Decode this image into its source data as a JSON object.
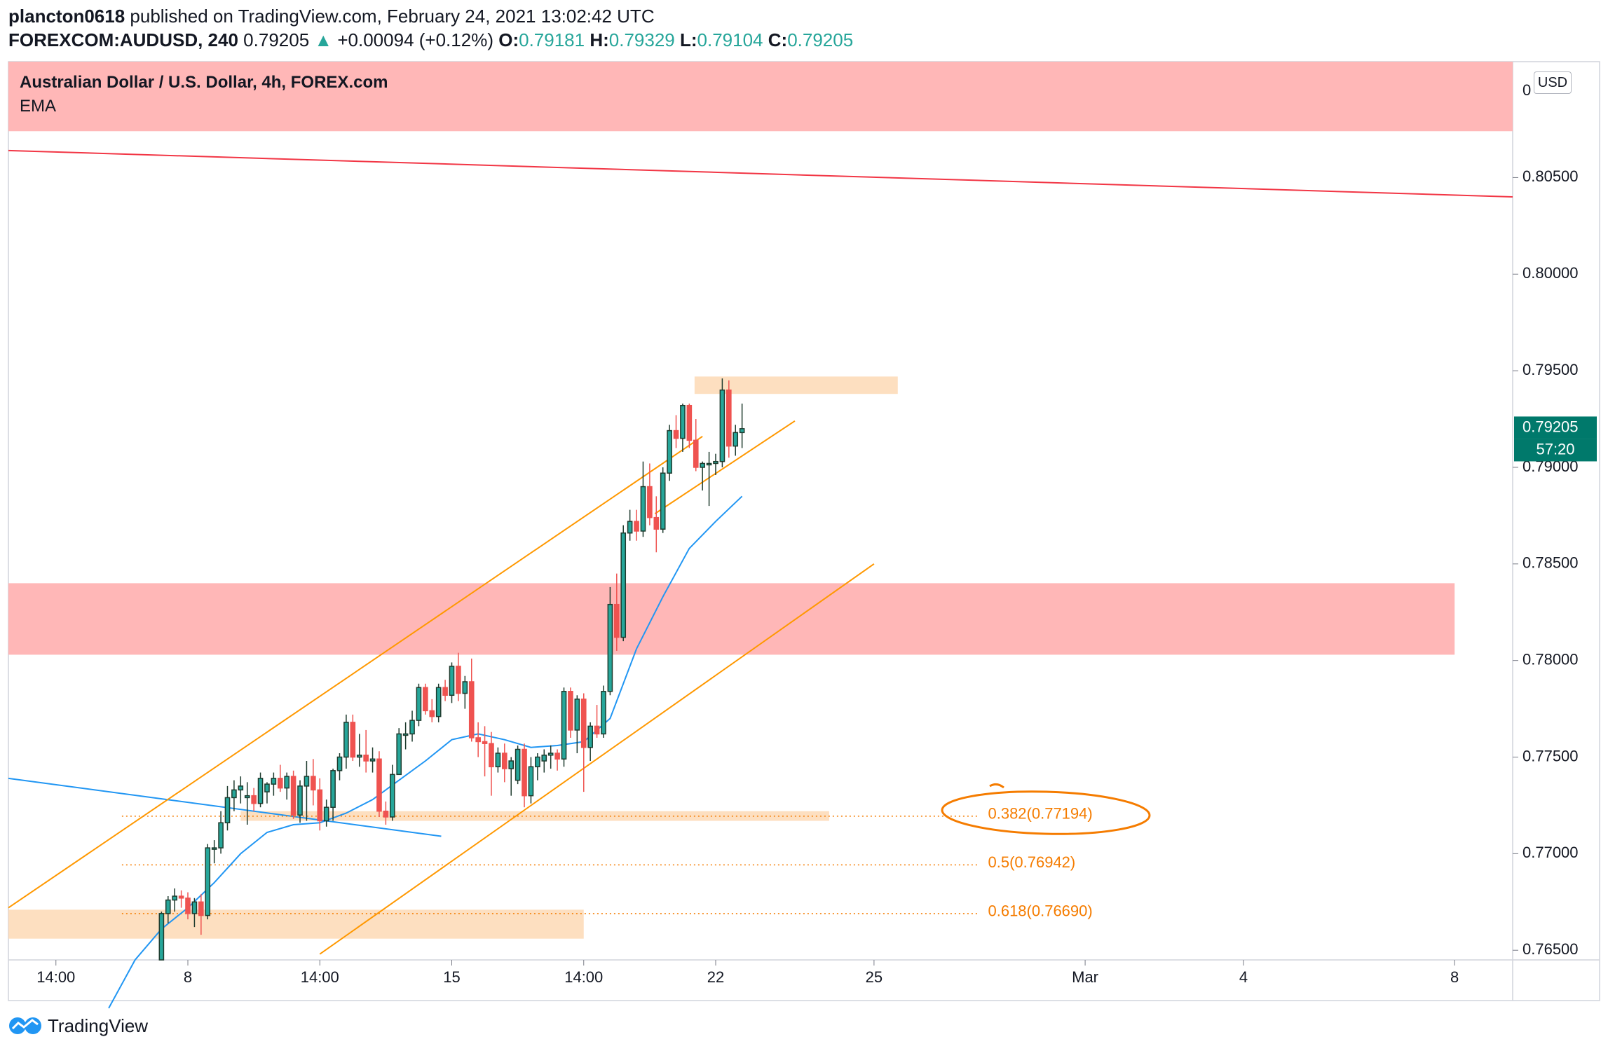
{
  "header": {
    "user": "plancton0618",
    "published": " published on TradingView.com, February 24, 2021 13:02:42 UTC",
    "symbol": "FOREXCOM:AUDUSD, 240",
    "last": "0.79205",
    "change": "+0.00094 (+0.12%)",
    "o_label": "O:",
    "o": "0.79181",
    "h_label": "H:",
    "h": "0.79329",
    "l_label": "L:",
    "l": "0.79104",
    "c_label": "C:",
    "c": "0.79205"
  },
  "legend": {
    "title": "Australian Dollar / U.S. Dollar, 4h, FOREX.com",
    "indicator": "EMA"
  },
  "currency_button": "USD",
  "footer": {
    "brand": "TradingView"
  },
  "colors": {
    "up": "#26a69a",
    "down": "#ef5350",
    "candle_dark": "#1e3b2e",
    "ema": "#2196f3",
    "channel": "#ff9800",
    "resistance_line": "#f23645",
    "zone_red": "#ffb3b3",
    "zone_orange": "#fdd9b5",
    "fib_text": "#f57c00",
    "price_tag": "#00796b"
  },
  "chart_data": {
    "type": "candlestick",
    "ylim": [
      0.7645,
      0.811
    ],
    "yticks": [
      "0.80500",
      "0.80000",
      "0.79500",
      "0.79000",
      "0.78500",
      "0.78000",
      "0.77500",
      "0.77000",
      "0.76500"
    ],
    "ytick_values": [
      0.805,
      0.8,
      0.795,
      0.79,
      0.785,
      0.78,
      0.775,
      0.77,
      0.765
    ],
    "top_tick_partial": "0",
    "x_tick_labels": [
      {
        "label": "14:00",
        "x": 0
      },
      {
        "label": "8",
        "x": 5
      },
      {
        "label": "14:00",
        "x": 10
      },
      {
        "label": "15",
        "x": 15
      },
      {
        "label": "14:00",
        "x": 20
      },
      {
        "label": "22",
        "x": 25
      },
      {
        "label": "25",
        "x": 31
      },
      {
        "label": "Mar",
        "x": 39
      },
      {
        "label": "4",
        "x": 45
      },
      {
        "label": "8",
        "x": 53
      }
    ],
    "x_range": [
      -1.8,
      55.2
    ],
    "candles": [
      {
        "x": 4.0,
        "o": 0.764,
        "h": 0.767,
        "l": 0.7635,
        "c": 0.7669
      },
      {
        "x": 4.25,
        "o": 0.7669,
        "h": 0.7678,
        "l": 0.7664,
        "c": 0.7676
      },
      {
        "x": 4.5,
        "o": 0.7676,
        "h": 0.7682,
        "l": 0.767,
        "c": 0.7678
      },
      {
        "x": 4.75,
        "o": 0.7678,
        "h": 0.7681,
        "l": 0.7672,
        "c": 0.7677
      },
      {
        "x": 5.0,
        "o": 0.7677,
        "h": 0.768,
        "l": 0.7666,
        "c": 0.7669
      },
      {
        "x": 5.25,
        "o": 0.7669,
        "h": 0.7677,
        "l": 0.7662,
        "c": 0.7675
      },
      {
        "x": 5.5,
        "o": 0.7675,
        "h": 0.7679,
        "l": 0.7658,
        "c": 0.7668
      },
      {
        "x": 5.75,
        "o": 0.7668,
        "h": 0.7705,
        "l": 0.7666,
        "c": 0.7703
      },
      {
        "x": 6.0,
        "o": 0.7703,
        "h": 0.7707,
        "l": 0.7695,
        "c": 0.7703
      },
      {
        "x": 6.25,
        "o": 0.7703,
        "h": 0.7722,
        "l": 0.77,
        "c": 0.7716
      },
      {
        "x": 6.5,
        "o": 0.7716,
        "h": 0.7735,
        "l": 0.7712,
        "c": 0.7729
      },
      {
        "x": 6.75,
        "o": 0.7729,
        "h": 0.7738,
        "l": 0.7722,
        "c": 0.7733
      },
      {
        "x": 7.0,
        "o": 0.7733,
        "h": 0.774,
        "l": 0.7726,
        "c": 0.7735
      },
      {
        "x": 7.25,
        "o": 0.7729,
        "h": 0.7737,
        "l": 0.7715,
        "c": 0.773
      },
      {
        "x": 7.5,
        "o": 0.773,
        "h": 0.7734,
        "l": 0.7722,
        "c": 0.7726
      },
      {
        "x": 7.75,
        "o": 0.7726,
        "h": 0.7742,
        "l": 0.7724,
        "c": 0.7739
      },
      {
        "x": 8.0,
        "o": 0.7732,
        "h": 0.7737,
        "l": 0.7726,
        "c": 0.7736
      },
      {
        "x": 8.25,
        "o": 0.7736,
        "h": 0.7742,
        "l": 0.773,
        "c": 0.7739
      },
      {
        "x": 8.5,
        "o": 0.7739,
        "h": 0.7746,
        "l": 0.7732,
        "c": 0.7734
      },
      {
        "x": 8.75,
        "o": 0.7734,
        "h": 0.7742,
        "l": 0.7728,
        "c": 0.774
      },
      {
        "x": 9.0,
        "o": 0.774,
        "h": 0.7743,
        "l": 0.7718,
        "c": 0.772
      },
      {
        "x": 9.25,
        "o": 0.772,
        "h": 0.7738,
        "l": 0.7716,
        "c": 0.7735
      },
      {
        "x": 9.5,
        "o": 0.7735,
        "h": 0.7748,
        "l": 0.7717,
        "c": 0.774
      },
      {
        "x": 9.75,
        "o": 0.774,
        "h": 0.7749,
        "l": 0.7725,
        "c": 0.7733
      },
      {
        "x": 10.0,
        "o": 0.7733,
        "h": 0.7739,
        "l": 0.7712,
        "c": 0.7717
      },
      {
        "x": 10.25,
        "o": 0.7717,
        "h": 0.7728,
        "l": 0.7714,
        "c": 0.7724
      },
      {
        "x": 10.5,
        "o": 0.7724,
        "h": 0.7744,
        "l": 0.7717,
        "c": 0.7743
      },
      {
        "x": 10.75,
        "o": 0.7743,
        "h": 0.7752,
        "l": 0.7738,
        "c": 0.775
      },
      {
        "x": 11.0,
        "o": 0.775,
        "h": 0.7772,
        "l": 0.7744,
        "c": 0.7768
      },
      {
        "x": 11.25,
        "o": 0.7768,
        "h": 0.7772,
        "l": 0.7748,
        "c": 0.775
      },
      {
        "x": 11.5,
        "o": 0.775,
        "h": 0.7762,
        "l": 0.7745,
        "c": 0.7751
      },
      {
        "x": 11.75,
        "o": 0.7751,
        "h": 0.7764,
        "l": 0.7742,
        "c": 0.7748
      },
      {
        "x": 12.0,
        "o": 0.7748,
        "h": 0.7755,
        "l": 0.7742,
        "c": 0.7749
      },
      {
        "x": 12.25,
        "o": 0.7749,
        "h": 0.7753,
        "l": 0.7719,
        "c": 0.7722
      },
      {
        "x": 12.5,
        "o": 0.7722,
        "h": 0.7727,
        "l": 0.7715,
        "c": 0.7719
      },
      {
        "x": 12.75,
        "o": 0.7719,
        "h": 0.7746,
        "l": 0.7717,
        "c": 0.7741
      },
      {
        "x": 13.0,
        "o": 0.7741,
        "h": 0.7765,
        "l": 0.7741,
        "c": 0.7762
      },
      {
        "x": 13.25,
        "o": 0.7762,
        "h": 0.7768,
        "l": 0.7754,
        "c": 0.7762
      },
      {
        "x": 13.5,
        "o": 0.7762,
        "h": 0.7774,
        "l": 0.7758,
        "c": 0.7769
      },
      {
        "x": 13.75,
        "o": 0.7769,
        "h": 0.7788,
        "l": 0.7766,
        "c": 0.7786
      },
      {
        "x": 14.0,
        "o": 0.7786,
        "h": 0.7788,
        "l": 0.7772,
        "c": 0.7774
      },
      {
        "x": 14.25,
        "o": 0.7774,
        "h": 0.778,
        "l": 0.7768,
        "c": 0.7771
      },
      {
        "x": 14.5,
        "o": 0.7771,
        "h": 0.7788,
        "l": 0.7768,
        "c": 0.7786
      },
      {
        "x": 14.75,
        "o": 0.7786,
        "h": 0.779,
        "l": 0.7779,
        "c": 0.7782
      },
      {
        "x": 15.0,
        "o": 0.7782,
        "h": 0.7799,
        "l": 0.7778,
        "c": 0.7797
      },
      {
        "x": 15.25,
        "o": 0.7797,
        "h": 0.7804,
        "l": 0.7779,
        "c": 0.7783
      },
      {
        "x": 15.5,
        "o": 0.7783,
        "h": 0.7792,
        "l": 0.7775,
        "c": 0.7789
      },
      {
        "x": 15.75,
        "o": 0.7789,
        "h": 0.7801,
        "l": 0.7758,
        "c": 0.776
      },
      {
        "x": 16.0,
        "o": 0.776,
        "h": 0.7768,
        "l": 0.775,
        "c": 0.7758
      },
      {
        "x": 16.25,
        "o": 0.7758,
        "h": 0.7766,
        "l": 0.774,
        "c": 0.7757
      },
      {
        "x": 16.5,
        "o": 0.7757,
        "h": 0.7763,
        "l": 0.773,
        "c": 0.7745
      },
      {
        "x": 16.75,
        "o": 0.7745,
        "h": 0.7755,
        "l": 0.7742,
        "c": 0.7752
      },
      {
        "x": 17.0,
        "o": 0.7752,
        "h": 0.7757,
        "l": 0.7737,
        "c": 0.7744
      },
      {
        "x": 17.25,
        "o": 0.7744,
        "h": 0.775,
        "l": 0.773,
        "c": 0.7748
      },
      {
        "x": 17.5,
        "o": 0.7738,
        "h": 0.7756,
        "l": 0.7736,
        "c": 0.7754
      },
      {
        "x": 17.75,
        "o": 0.7754,
        "h": 0.7757,
        "l": 0.7724,
        "c": 0.773
      },
      {
        "x": 18.0,
        "o": 0.773,
        "h": 0.775,
        "l": 0.7726,
        "c": 0.7745
      },
      {
        "x": 18.25,
        "o": 0.7745,
        "h": 0.7752,
        "l": 0.7738,
        "c": 0.775
      },
      {
        "x": 18.5,
        "o": 0.7748,
        "h": 0.7754,
        "l": 0.7742,
        "c": 0.7751
      },
      {
        "x": 18.75,
        "o": 0.7751,
        "h": 0.7756,
        "l": 0.7744,
        "c": 0.7752
      },
      {
        "x": 19.0,
        "o": 0.7752,
        "h": 0.7754,
        "l": 0.7743,
        "c": 0.7749
      },
      {
        "x": 19.25,
        "o": 0.7749,
        "h": 0.7786,
        "l": 0.7745,
        "c": 0.7784
      },
      {
        "x": 19.5,
        "o": 0.7784,
        "h": 0.7786,
        "l": 0.776,
        "c": 0.7764
      },
      {
        "x": 19.75,
        "o": 0.7764,
        "h": 0.7782,
        "l": 0.7752,
        "c": 0.778
      },
      {
        "x": 20.0,
        "o": 0.778,
        "h": 0.7783,
        "l": 0.7732,
        "c": 0.7755
      },
      {
        "x": 20.25,
        "o": 0.7755,
        "h": 0.7768,
        "l": 0.7748,
        "c": 0.7766
      },
      {
        "x": 20.5,
        "o": 0.7766,
        "h": 0.7777,
        "l": 0.776,
        "c": 0.7762
      },
      {
        "x": 20.75,
        "o": 0.7762,
        "h": 0.7787,
        "l": 0.776,
        "c": 0.7784
      },
      {
        "x": 21.0,
        "o": 0.7784,
        "h": 0.7838,
        "l": 0.7782,
        "c": 0.7829
      },
      {
        "x": 21.25,
        "o": 0.7829,
        "h": 0.7845,
        "l": 0.7805,
        "c": 0.7812
      },
      {
        "x": 21.5,
        "o": 0.7812,
        "h": 0.787,
        "l": 0.781,
        "c": 0.7866
      },
      {
        "x": 21.75,
        "o": 0.7866,
        "h": 0.7878,
        "l": 0.7862,
        "c": 0.7872
      },
      {
        "x": 22.0,
        "o": 0.7872,
        "h": 0.7878,
        "l": 0.7862,
        "c": 0.7867
      },
      {
        "x": 22.25,
        "o": 0.7867,
        "h": 0.7903,
        "l": 0.7864,
        "c": 0.789
      },
      {
        "x": 22.5,
        "o": 0.789,
        "h": 0.7902,
        "l": 0.787,
        "c": 0.7874
      },
      {
        "x": 22.75,
        "o": 0.7874,
        "h": 0.7885,
        "l": 0.7856,
        "c": 0.7868
      },
      {
        "x": 23.0,
        "o": 0.7868,
        "h": 0.79,
        "l": 0.7866,
        "c": 0.7897
      },
      {
        "x": 23.25,
        "o": 0.7897,
        "h": 0.7922,
        "l": 0.7893,
        "c": 0.7919
      },
      {
        "x": 23.5,
        "o": 0.7919,
        "h": 0.7927,
        "l": 0.791,
        "c": 0.7915
      },
      {
        "x": 23.75,
        "o": 0.7915,
        "h": 0.7933,
        "l": 0.7908,
        "c": 0.7932
      },
      {
        "x": 24.0,
        "o": 0.7932,
        "h": 0.7933,
        "l": 0.791,
        "c": 0.7914
      },
      {
        "x": 24.25,
        "o": 0.7914,
        "h": 0.7925,
        "l": 0.7898,
        "c": 0.79
      },
      {
        "x": 24.5,
        "o": 0.79,
        "h": 0.7903,
        "l": 0.7888,
        "c": 0.7902
      },
      {
        "x": 24.75,
        "o": 0.7902,
        "h": 0.7908,
        "l": 0.788,
        "c": 0.7902
      },
      {
        "x": 25.0,
        "o": 0.7902,
        "h": 0.7907,
        "l": 0.7896,
        "c": 0.7903
      },
      {
        "x": 25.25,
        "o": 0.7903,
        "h": 0.7946,
        "l": 0.79,
        "c": 0.794
      },
      {
        "x": 25.5,
        "o": 0.794,
        "h": 0.7945,
        "l": 0.7905,
        "c": 0.7911
      },
      {
        "x": 25.75,
        "o": 0.7911,
        "h": 0.7922,
        "l": 0.7906,
        "c": 0.7918
      },
      {
        "x": 26.0,
        "o": 0.7918,
        "h": 0.7933,
        "l": 0.791,
        "c": 0.792
      }
    ],
    "ema": [
      [
        2.0,
        0.762
      ],
      [
        3.0,
        0.7645
      ],
      [
        4.0,
        0.7661
      ],
      [
        5.0,
        0.7672
      ],
      [
        6.0,
        0.7685
      ],
      [
        7.0,
        0.77
      ],
      [
        8.0,
        0.7711
      ],
      [
        9.0,
        0.7715
      ],
      [
        10.0,
        0.7716
      ],
      [
        11.0,
        0.7721
      ],
      [
        12.0,
        0.7728
      ],
      [
        13.0,
        0.7738
      ],
      [
        14.0,
        0.7748
      ],
      [
        15.0,
        0.7759
      ],
      [
        16.0,
        0.7762
      ],
      [
        17.0,
        0.7759
      ],
      [
        18.0,
        0.7755
      ],
      [
        19.0,
        0.7756
      ],
      [
        20.0,
        0.7758
      ],
      [
        21.0,
        0.777
      ],
      [
        22.0,
        0.7806
      ],
      [
        23.0,
        0.7833
      ],
      [
        24.0,
        0.7858
      ],
      [
        25.0,
        0.7872
      ],
      [
        26.0,
        0.7885
      ]
    ],
    "resistance_line": [
      [
        -1.8,
        0.8064
      ],
      [
        55.2,
        0.804
      ]
    ],
    "descending_blue_line": [
      [
        -1.8,
        0.7739
      ],
      [
        14.6,
        0.7709
      ]
    ],
    "channel_upper": [
      [
        -1.8,
        0.7672
      ],
      [
        24.5,
        0.7916
      ]
    ],
    "channel_middle": [
      [
        22.7,
        0.7876
      ],
      [
        28.0,
        0.7924
      ]
    ],
    "channel_lower": [
      [
        10.0,
        0.7648
      ],
      [
        31.0,
        0.785
      ]
    ],
    "zones": [
      {
        "name": "upper-red-zone",
        "x": [
          -1.8,
          55.2
        ],
        "y": [
          0.8074,
          0.8112
        ],
        "color": "red"
      },
      {
        "name": "middle-red-zone",
        "x": [
          -1.8,
          53.0
        ],
        "y": [
          0.7803,
          0.784
        ],
        "color": "red"
      },
      {
        "name": "top-orange-zone",
        "x": [
          24.2,
          31.9
        ],
        "y": [
          0.7938,
          0.7947
        ],
        "color": "orange"
      },
      {
        "name": "fib382-orange-zone",
        "x": [
          7.0,
          29.3
        ],
        "y": [
          0.7717,
          0.7722
        ],
        "color": "orange"
      },
      {
        "name": "bottom-orange-zone",
        "x": [
          -1.8,
          20.0
        ],
        "y": [
          0.7656,
          0.7671
        ],
        "color": "orange"
      }
    ],
    "fib_levels": [
      {
        "ratio": "0.382",
        "value": 0.77194,
        "label": "0.382(0.77194)",
        "x_start": 2.5
      },
      {
        "ratio": "0.5",
        "value": 0.76942,
        "label": "0.5(0.76942)",
        "x_start": 2.5
      },
      {
        "ratio": "0.618",
        "value": 0.7669,
        "label": "0.618(0.76690)",
        "x_start": 2.5
      }
    ],
    "fib_x_end": 35.0,
    "price_tag": {
      "value": 0.79205,
      "label": "0.79205",
      "countdown": "57:20"
    }
  }
}
